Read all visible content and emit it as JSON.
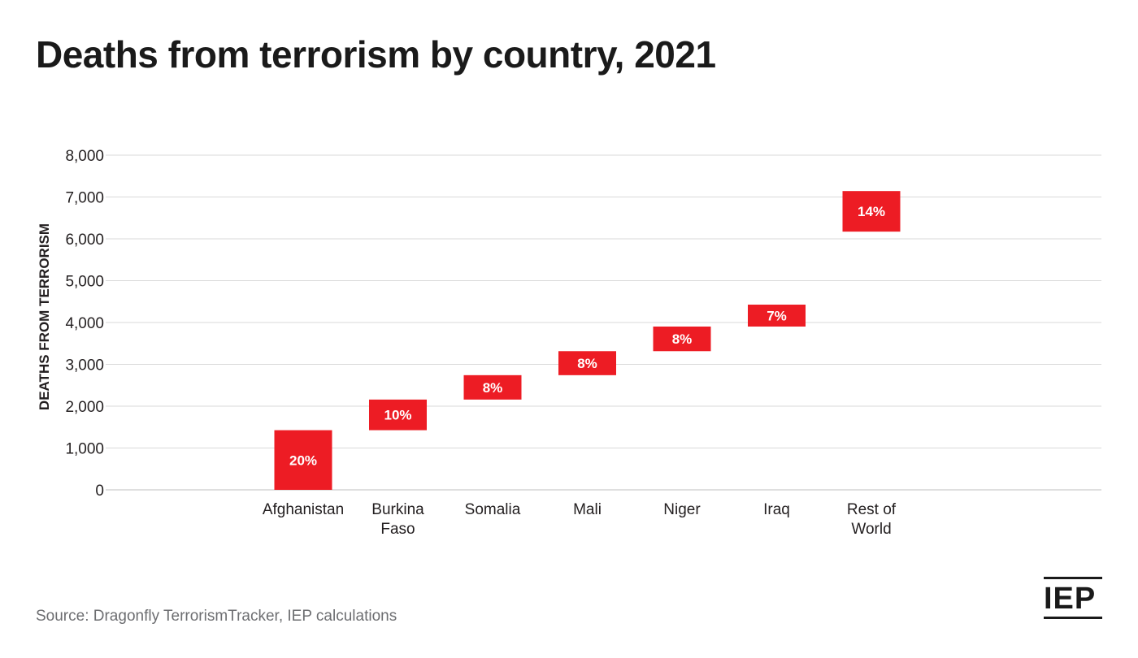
{
  "title": "Deaths from terrorism by country, 2021",
  "source": "Source: Dragonfly TerrorismTracker, IEP calculations",
  "logo": "IEP",
  "colors": {
    "bar": "#ed1c24",
    "grid": "#d9d9d9",
    "text": "#231f20",
    "muted": "#6d6e71"
  },
  "chart_data": {
    "type": "bar",
    "subtype": "waterfall",
    "title": "Deaths from terrorism by country, 2021",
    "ylabel": "DEATHS FROM TERRORISM",
    "xlabel": "",
    "ylim": [
      0,
      8000
    ],
    "yticks": [
      0,
      1000,
      2000,
      3000,
      4000,
      5000,
      6000,
      7000,
      8000
    ],
    "ytick_labels": [
      "0",
      "1,000",
      "2,000",
      "3,000",
      "4,000",
      "5,000",
      "6,000",
      "7,000",
      "8,000"
    ],
    "grid": true,
    "categories": [
      [
        "Afghanistan"
      ],
      [
        "Burkina",
        "Faso"
      ],
      [
        "Somalia"
      ],
      [
        "Mali"
      ],
      [
        "Niger"
      ],
      [
        "Iraq"
      ],
      [
        "Rest of",
        "World"
      ]
    ],
    "bars": [
      {
        "start": 0,
        "end": 1426,
        "label": "20%"
      },
      {
        "start": 1426,
        "end": 2158,
        "label": "10%"
      },
      {
        "start": 2158,
        "end": 2741,
        "label": "8%"
      },
      {
        "start": 2741,
        "end": 3315,
        "label": "8%"
      },
      {
        "start": 3315,
        "end": 3903,
        "label": "8%"
      },
      {
        "start": 3903,
        "end": 4427,
        "label": "7%"
      },
      {
        "start": 6172,
        "end": 7142,
        "label": "14%"
      }
    ]
  }
}
